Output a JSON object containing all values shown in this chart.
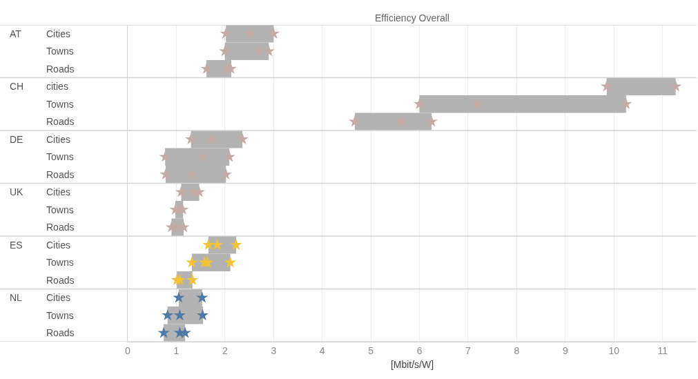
{
  "chart_data": {
    "type": "bar",
    "orientation": "horizontal",
    "title": "Efficiency Overall",
    "xlabel": "[Mbit/s/W]",
    "categories": [
      "Cities",
      "Towns",
      "Roads",
      "cities",
      "Towns",
      "Roads",
      "Cities",
      "Towns",
      "Roads",
      "Cities",
      "Towns",
      "Roads",
      "Cities",
      "Towns",
      "Roads",
      "Cities",
      "Towns",
      "Roads"
    ],
    "annotations": [
      "AT",
      "CH",
      "DE",
      "UK",
      "ES",
      "NL"
    ],
    "series": [
      {
        "color": "#b3b3b3",
        "base": [
          2.02,
          2.0,
          1.62,
          9.85,
          6.0,
          4.67,
          1.3,
          0.77,
          0.78,
          1.1,
          0.98,
          0.9,
          1.66,
          1.32,
          1.01,
          1.05,
          0.82,
          0.74
        ],
        "values": [
          0.98,
          0.9,
          0.51,
          1.42,
          4.25,
          1.58,
          1.06,
          1.32,
          1.24,
          0.37,
          0.16,
          0.25,
          0.57,
          0.79,
          0.32,
          0.48,
          0.73,
          0.44
        ]
      },
      {
        "type": "scatter",
        "colors": [
          "#c4aca6",
          "#c4aca6",
          "#c4aca6",
          "#c4aca6",
          "#c4aca6",
          "#c4aca6",
          "#c4aca6",
          "#c4aca6",
          "#c4aca6",
          "#c4aca6",
          "#c4aca6",
          "#c4aca6",
          "#f2c335",
          "#f2c335",
          "#f2c335",
          "#4e79a7",
          "#4e79a7",
          "#4e79a7"
        ],
        "values": [
          2.02,
          2.0,
          1.62,
          9.85,
          6.0,
          4.67,
          1.3,
          0.77,
          0.78,
          1.1,
          0.98,
          0.9,
          1.66,
          1.32,
          1.01,
          1.05,
          0.82,
          0.74
        ]
      },
      {
        "type": "scatter",
        "colors": [
          "#c4aca6",
          "#c4aca6",
          "#c4aca6",
          "#c4aca6",
          "#c4aca6",
          "#c4aca6",
          "#c4aca6",
          "#c4aca6",
          "#c4aca6",
          "#c4aca6",
          "#c4aca6",
          "#c4aca6",
          "#f2c335",
          "#f2c335",
          "#f2c335",
          "#4e79a7",
          "#4e79a7",
          "#4e79a7"
        ],
        "values": [
          2.52,
          2.7,
          2.05,
          11.27,
          7.19,
          5.62,
          1.72,
          1.53,
          1.31,
          1.35,
          1.06,
          1.0,
          1.84,
          1.58,
          1.07,
          1.53,
          1.07,
          1.07
        ]
      },
      {
        "type": "scatter",
        "colors": [
          "#c4aca6",
          "#c4aca6",
          "#c4aca6",
          "#c4aca6",
          "#c4aca6",
          "#c4aca6",
          "#c4aca6",
          "#c4aca6",
          "#c4aca6",
          "#c4aca6",
          "#c4aca6",
          "#c4aca6",
          "#f2c335",
          "#f2c335",
          "#f2c335",
          "#4e79a7",
          "#4e79a7",
          "#4e79a7"
        ],
        "values": [
          3.0,
          2.9,
          2.12,
          null,
          10.25,
          6.25,
          2.36,
          2.09,
          2.02,
          1.47,
          1.13,
          1.15,
          2.23,
          1.64,
          1.33,
          null,
          1.54,
          1.18
        ]
      },
      {
        "type": "scatter",
        "colors": [
          "#c4aca6",
          "#c4aca6",
          "#c4aca6",
          "#c4aca6",
          "#c4aca6",
          "#c4aca6",
          "#c4aca6",
          "#c4aca6",
          "#c4aca6",
          "#c4aca6",
          "#c4aca6",
          "#c4aca6",
          "#f2c335",
          "#f2c335",
          "#f2c335",
          "#4e79a7",
          "#4e79a7",
          "#4e79a7"
        ],
        "values": [
          null,
          null,
          null,
          null,
          null,
          null,
          null,
          null,
          null,
          null,
          null,
          null,
          null,
          2.11,
          null,
          null,
          null,
          null
        ]
      }
    ],
    "marker": "star",
    "xlim": [
      0,
      11.7
    ],
    "xticks": [
      0,
      1,
      2,
      3,
      4,
      5,
      6,
      7,
      8,
      9,
      10,
      11
    ],
    "grid": "x"
  }
}
